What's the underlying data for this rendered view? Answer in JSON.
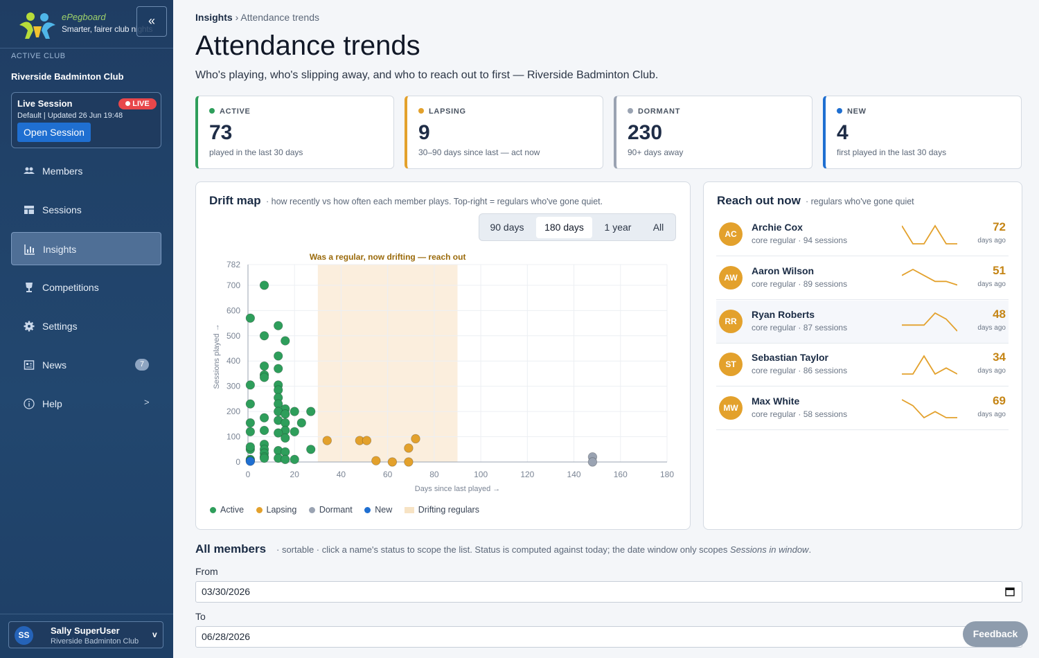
{
  "sidebar": {
    "brand_name": "ePegboard",
    "brand_tagline": "Smarter, fairer club nights",
    "collapse_icon": "«",
    "club_label": "ACTIVE CLUB",
    "club_name": "Riverside Badminton Club",
    "live": {
      "title": "Live Session",
      "badge": "LIVE",
      "subtitle": "Default | Updated 26 Jun 19:48",
      "button": "Open Session"
    },
    "items": [
      {
        "label": "Members",
        "icon": "members-icon"
      },
      {
        "label": "Sessions",
        "icon": "sessions-icon"
      },
      {
        "label": "Insights",
        "icon": "insights-icon",
        "active": true
      },
      {
        "label": "Competitions",
        "icon": "trophy-icon"
      },
      {
        "label": "Settings",
        "icon": "gear-icon"
      },
      {
        "label": "News",
        "icon": "news-icon",
        "badge": "7"
      },
      {
        "label": "Help",
        "icon": "help-icon",
        "arrow": ">"
      }
    ],
    "user": {
      "initials": "SS",
      "name": "Sally SuperUser",
      "club": "Riverside Badminton Club",
      "caret": "v"
    }
  },
  "breadcrumb": {
    "root": "Insights",
    "separator": "›",
    "current": "Attendance trends"
  },
  "page": {
    "title": "Attendance trends",
    "subtitle": "Who's playing, who's slipping away, and who to reach out to first — Riverside Badminton Club."
  },
  "colors": {
    "active": "#2e9e5b",
    "lapsing": "#e3a12c",
    "dormant": "#9aa3b2",
    "new": "#1f6fd1",
    "drift_band": "#fbeedd"
  },
  "stats": [
    {
      "label": "ACTIVE",
      "value": "73",
      "note": "played in the last 30 days",
      "color": "#2e9e5b"
    },
    {
      "label": "LAPSING",
      "value": "9",
      "note": "30–90 days since last — act now",
      "color": "#e3a12c"
    },
    {
      "label": "DORMANT",
      "value": "230",
      "note": "90+ days away",
      "color": "#9aa3b2"
    },
    {
      "label": "NEW",
      "value": "4",
      "note": "first played in the last 30 days",
      "color": "#1f6fd1"
    }
  ],
  "drift": {
    "title": "Drift map",
    "subtitle": "· how recently vs how often each member plays. Top-right = regulars who've gone quiet.",
    "ranges": [
      {
        "label": "90 days",
        "selected": false
      },
      {
        "label": "180 days",
        "selected": true
      },
      {
        "label": "1 year",
        "selected": false
      },
      {
        "label": "All",
        "selected": false
      }
    ],
    "legend": {
      "active": "Active",
      "lapsing": "Lapsing",
      "dormant": "Dormant",
      "new": "New",
      "drifting": "Drifting regulars"
    }
  },
  "chart_data": {
    "type": "scatter",
    "xlabel": "Days since last played →",
    "ylabel": "Sessions played →",
    "xlim": [
      0,
      180
    ],
    "ylim": [
      0,
      782
    ],
    "x_ticks": [
      0,
      20,
      40,
      60,
      80,
      100,
      120,
      140,
      160,
      180
    ],
    "y_ticks": [
      0,
      100,
      200,
      300,
      400,
      500,
      600,
      700,
      782
    ],
    "grid": true,
    "legend_position": "bottom-left",
    "annotation": {
      "text": "Was a regular, now drifting — reach out",
      "x_range": [
        30,
        90
      ]
    },
    "series": [
      {
        "name": "Active",
        "color": "#2e9e5b",
        "points": [
          [
            7,
            700
          ],
          [
            1,
            570
          ],
          [
            13,
            540
          ],
          [
            7,
            500
          ],
          [
            16,
            480
          ],
          [
            13,
            420
          ],
          [
            7,
            380
          ],
          [
            13,
            370
          ],
          [
            7,
            345
          ],
          [
            7,
            335
          ],
          [
            1,
            305
          ],
          [
            13,
            305
          ],
          [
            13,
            285
          ],
          [
            13,
            255
          ],
          [
            13,
            230
          ],
          [
            1,
            230
          ],
          [
            16,
            210
          ],
          [
            13,
            200
          ],
          [
            16,
            190
          ],
          [
            20,
            200
          ],
          [
            27,
            200
          ],
          [
            7,
            175
          ],
          [
            13,
            165
          ],
          [
            1,
            155
          ],
          [
            23,
            155
          ],
          [
            16,
            155
          ],
          [
            1,
            120
          ],
          [
            7,
            125
          ],
          [
            16,
            125
          ],
          [
            13,
            115
          ],
          [
            20,
            120
          ],
          [
            16,
            95
          ],
          [
            7,
            70
          ],
          [
            13,
            45
          ],
          [
            1,
            50
          ],
          [
            1,
            60
          ],
          [
            7,
            50
          ],
          [
            7,
            35
          ],
          [
            16,
            40
          ],
          [
            7,
            20
          ],
          [
            7,
            15
          ],
          [
            1,
            10
          ],
          [
            13,
            15
          ],
          [
            20,
            10
          ],
          [
            16,
            10
          ],
          [
            1,
            5
          ],
          [
            27,
            50
          ]
        ]
      },
      {
        "name": "Lapsing",
        "color": "#e3a12c",
        "points": [
          [
            34,
            85
          ],
          [
            48,
            85
          ],
          [
            51,
            85
          ],
          [
            72,
            92
          ],
          [
            69,
            55
          ],
          [
            55,
            5
          ],
          [
            62,
            0
          ],
          [
            69,
            0
          ]
        ]
      },
      {
        "name": "Dormant",
        "color": "#9aa3b2",
        "points": [
          [
            148,
            20
          ],
          [
            148,
            0
          ]
        ]
      },
      {
        "name": "New",
        "color": "#1f6fd1",
        "points": [
          [
            1,
            3
          ]
        ]
      }
    ]
  },
  "reach": {
    "title": "Reach out now",
    "subtitle": "· regulars who've gone quiet",
    "days_label": "days ago",
    "members": [
      {
        "initials": "AC",
        "name": "Archie Cox",
        "meta": "core regular · 94 sessions",
        "days": "72",
        "spark": [
          4,
          1,
          1,
          4,
          1,
          1
        ]
      },
      {
        "initials": "AW",
        "name": "Aaron Wilson",
        "meta": "core regular · 89 sessions",
        "days": "51",
        "spark": [
          3,
          4,
          3,
          2,
          2,
          1.4
        ]
      },
      {
        "initials": "RR",
        "name": "Ryan Roberts",
        "meta": "core regular · 87 sessions",
        "days": "48",
        "spark": [
          2,
          2,
          2,
          4,
          3,
          1
        ]
      },
      {
        "initials": "ST",
        "name": "Sebastian Taylor",
        "meta": "core regular · 86 sessions",
        "days": "34",
        "spark": [
          1,
          1,
          4,
          1,
          2,
          1
        ]
      },
      {
        "initials": "MW",
        "name": "Max White",
        "meta": "core regular · 58 sessions",
        "days": "69",
        "spark": [
          4,
          3,
          1,
          2,
          1,
          1
        ]
      }
    ]
  },
  "members_section": {
    "title": "All members",
    "subtitle_prefix": "· sortable · click a name's status to scope the list. Status is computed against today; the date window only scopes",
    "subtitle_italic": "Sessions in window",
    "subtitle_suffix": ".",
    "from_label": "From",
    "from_value": "03/30/2026",
    "to_label": "To",
    "to_value": "06/28/2026"
  },
  "feedback": {
    "label": "Feedback"
  }
}
